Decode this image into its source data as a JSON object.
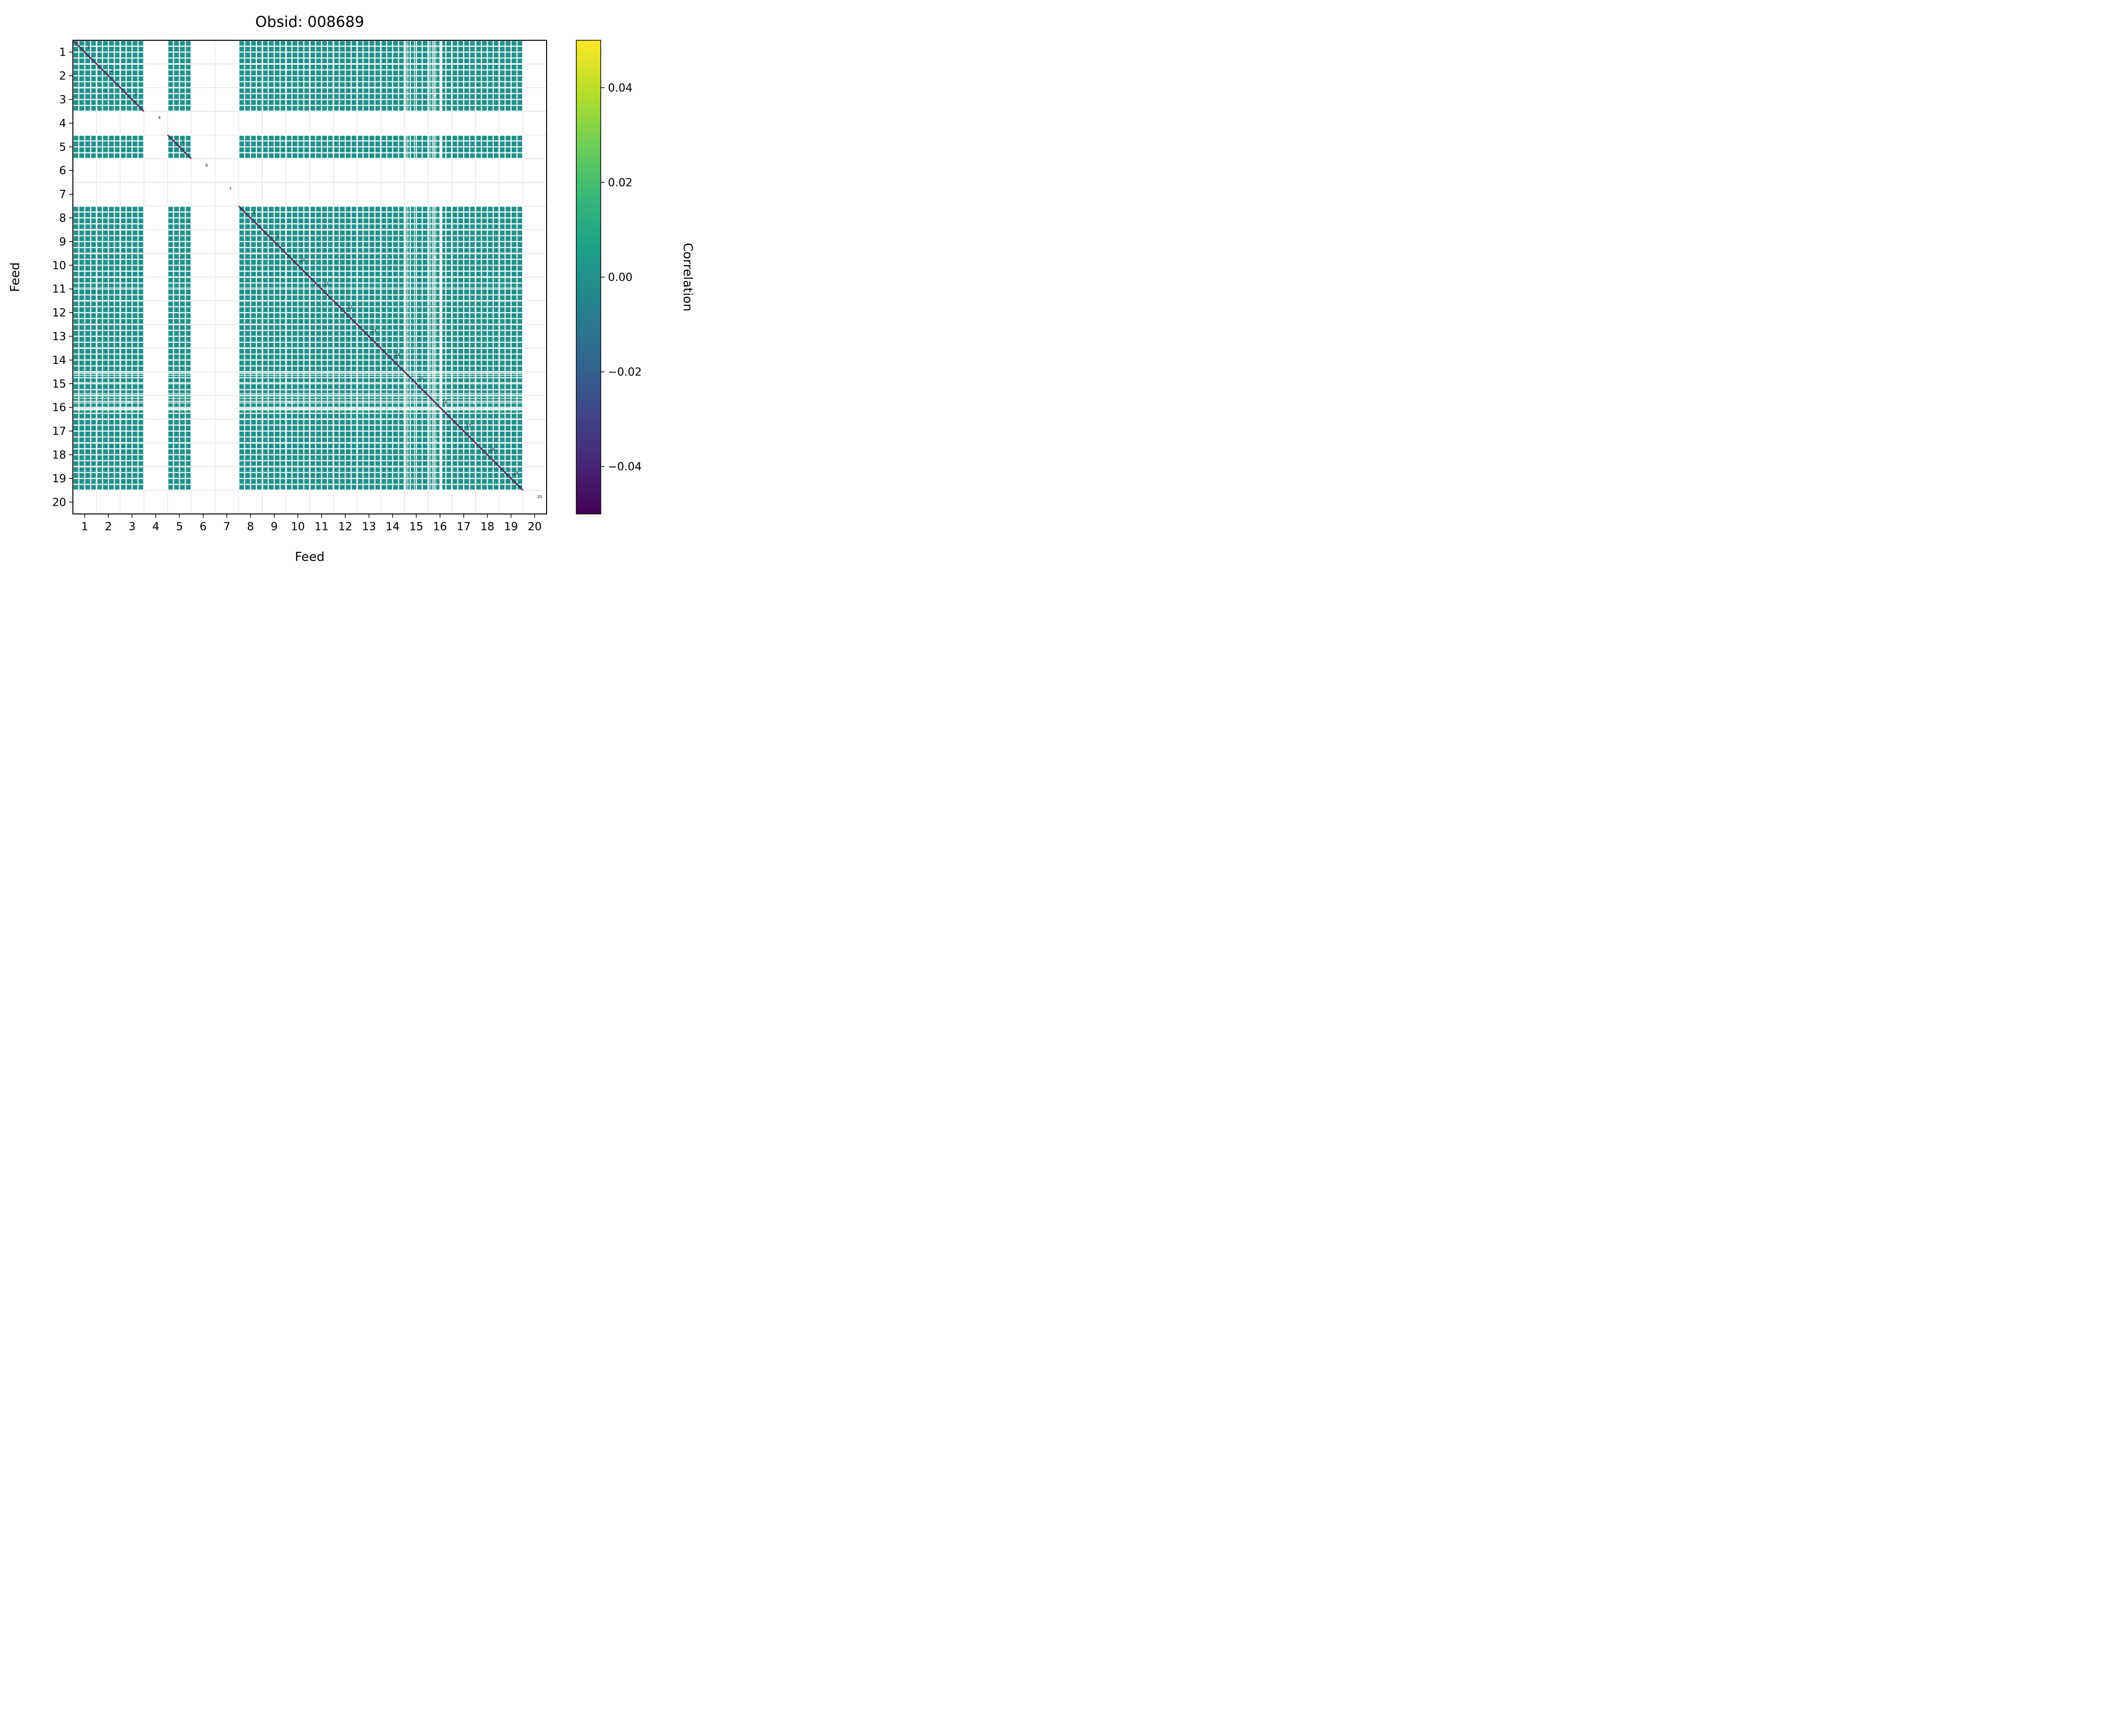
{
  "chart_data": {
    "type": "heatmap",
    "title": "Obsid: 008689",
    "xlabel": "Feed",
    "ylabel": "Feed",
    "n_feeds": 20,
    "subbands_per_feed": 4,
    "x_ticks": [
      "1",
      "2",
      "3",
      "4",
      "5",
      "6",
      "7",
      "8",
      "9",
      "10",
      "11",
      "12",
      "13",
      "14",
      "15",
      "16",
      "17",
      "18",
      "19",
      "20"
    ],
    "y_ticks": [
      "1",
      "2",
      "3",
      "4",
      "5",
      "6",
      "7",
      "8",
      "9",
      "10",
      "11",
      "12",
      "13",
      "14",
      "15",
      "16",
      "17",
      "18",
      "19",
      "20"
    ],
    "diagonal_labels": [
      "1",
      "2",
      "3",
      "4",
      "5",
      "6",
      "7",
      "8",
      "9",
      "10",
      "11",
      "12",
      "13",
      "14",
      "15",
      "16",
      "17",
      "18",
      "19",
      "20"
    ],
    "missing_feeds": [
      4,
      6,
      7,
      20
    ],
    "present_feeds": [
      1,
      2,
      3,
      5,
      8,
      9,
      10,
      11,
      12,
      13,
      14,
      15,
      16,
      17,
      18,
      19
    ],
    "base_correlation": 0.0,
    "value_color": "#21918c",
    "diagonal_color": "#352a5c",
    "diagonal_dash_color": "#9c3c5c",
    "grid_color": "#d8d8d8",
    "frame_color": "#000000",
    "plot_background": "#ffffff",
    "colorbar": {
      "label": "Correlation",
      "vmin": -0.05,
      "vmax": 0.05,
      "ticks": [
        {
          "label": "0.04",
          "value": 0.04
        },
        {
          "label": "0.02",
          "value": 0.02
        },
        {
          "label": "0.00",
          "value": 0.0
        },
        {
          "label": "−0.02",
          "value": -0.02
        },
        {
          "label": "−0.04",
          "value": -0.04
        }
      ],
      "gradient": [
        "#fde725",
        "#b5de2b",
        "#6ece58",
        "#35b779",
        "#1f9e89",
        "#26828e",
        "#31688e",
        "#3e4989",
        "#482878",
        "#440154"
      ]
    },
    "flagged_columns": [
      {
        "p": 14.06,
        "w": 0.035
      },
      {
        "p": 14.14,
        "w": 0.028
      },
      {
        "p": 14.42,
        "w": 0.03
      },
      {
        "p": 14.5,
        "w": 0.028
      },
      {
        "p": 15.08,
        "w": 0.03
      },
      {
        "p": 15.18,
        "w": 0.03
      },
      {
        "p": 15.32,
        "w": 0.028
      },
      {
        "p": 15.55,
        "w": 0.09
      }
    ],
    "flagged_rows": [
      {
        "p": 14.07,
        "w": 0.033
      },
      {
        "p": 14.15,
        "w": 0.028
      },
      {
        "p": 14.45,
        "w": 0.028
      },
      {
        "p": 14.92,
        "w": 0.03
      },
      {
        "p": 15.12,
        "w": 0.03
      },
      {
        "p": 15.32,
        "w": 0.028
      },
      {
        "p": 15.58,
        "w": 0.09
      },
      {
        "p": 10.44,
        "w": 0.018
      },
      {
        "p": 19.12,
        "w": 0.018
      }
    ],
    "flagged_speckles": [
      {
        "x": 9.1,
        "y": 15.28,
        "w": 0.08,
        "h": 0.05
      },
      {
        "x": 9.22,
        "y": 15.34,
        "w": 0.06,
        "h": 0.05
      },
      {
        "x": 9.32,
        "y": 15.28,
        "w": 0.05,
        "h": 0.04
      },
      {
        "x": 15.28,
        "y": 9.12,
        "w": 0.05,
        "h": 0.08
      },
      {
        "x": 15.34,
        "y": 9.24,
        "w": 0.04,
        "h": 0.06
      },
      {
        "x": 2.3,
        "y": 15.28,
        "w": 0.09,
        "h": 0.05
      },
      {
        "x": 2.44,
        "y": 15.28,
        "w": 0.07,
        "h": 0.05
      },
      {
        "x": 15.28,
        "y": 2.28,
        "w": 0.05,
        "h": 0.09
      },
      {
        "x": 16.9,
        "y": 15.29,
        "w": 0.09,
        "h": 0.05
      },
      {
        "x": 15.3,
        "y": 16.88,
        "w": 0.05,
        "h": 0.08
      },
      {
        "x": 9.2,
        "y": 19.1,
        "w": 0.07,
        "h": 0.04
      },
      {
        "x": 10.3,
        "y": 19.12,
        "w": 0.06,
        "h": 0.04
      }
    ]
  }
}
